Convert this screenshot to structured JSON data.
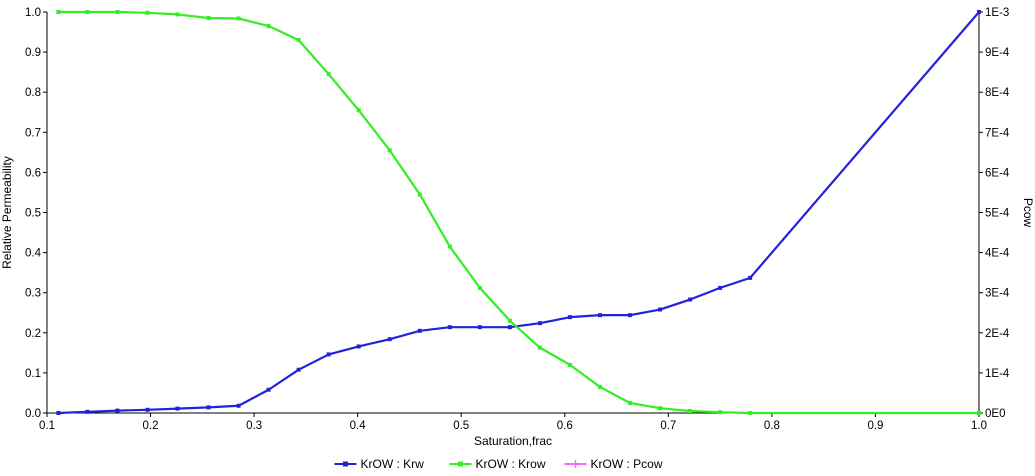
{
  "chart_data": {
    "type": "line",
    "xlabel": "Saturation,frac",
    "ylabel": "Relative Permeability",
    "y2label": "Pcow",
    "xlim": [
      0.1,
      1.0
    ],
    "ylim": [
      0.0,
      1.0
    ],
    "y2lim": [
      0.0,
      0.001
    ],
    "x_ticks": [
      "0.1",
      "0.2",
      "0.3",
      "0.4",
      "0.5",
      "0.6",
      "0.7",
      "0.8",
      "0.9",
      "1.0"
    ],
    "y_ticks": [
      "0.0",
      "0.1",
      "0.2",
      "0.3",
      "0.4",
      "0.5",
      "0.6",
      "0.7",
      "0.8",
      "0.9",
      "1.0"
    ],
    "y2_ticks": [
      "0E0",
      "1E-4",
      "2E-4",
      "3E-4",
      "4E-4",
      "5E-4",
      "6E-4",
      "7E-4",
      "8E-4",
      "9E-4",
      "1E-3"
    ],
    "grid": false,
    "legend_position": "bottom-center",
    "series": [
      {
        "name": "KrOW : Krw",
        "color": "#2222dd",
        "axis": "left",
        "x": [
          0.111,
          0.139,
          0.168,
          0.197,
          0.226,
          0.256,
          0.285,
          0.314,
          0.343,
          0.372,
          0.401,
          0.431,
          0.46,
          0.489,
          0.518,
          0.547,
          0.576,
          0.605,
          0.634,
          0.663,
          0.692,
          0.721,
          0.75,
          0.779,
          1.0
        ],
        "y": [
          0.0,
          0.003,
          0.006,
          0.008,
          0.011,
          0.014,
          0.018,
          0.058,
          0.108,
          0.146,
          0.166,
          0.184,
          0.205,
          0.214,
          0.214,
          0.214,
          0.224,
          0.239,
          0.244,
          0.244,
          0.258,
          0.283,
          0.312,
          0.337,
          1.0
        ]
      },
      {
        "name": "KrOW : Krow",
        "color": "#33ee22",
        "axis": "left",
        "x": [
          0.111,
          0.139,
          0.168,
          0.197,
          0.226,
          0.256,
          0.285,
          0.314,
          0.343,
          0.372,
          0.401,
          0.431,
          0.46,
          0.489,
          0.518,
          0.547,
          0.576,
          0.605,
          0.634,
          0.663,
          0.692,
          0.721,
          0.75,
          0.779,
          1.0
        ],
        "y": [
          1.0,
          1.0,
          1.0,
          0.998,
          0.994,
          0.985,
          0.984,
          0.965,
          0.93,
          0.845,
          0.755,
          0.655,
          0.545,
          0.415,
          0.312,
          0.23,
          0.163,
          0.12,
          0.065,
          0.025,
          0.012,
          0.005,
          0.002,
          0.0,
          0.0
        ]
      },
      {
        "name": "KrOW : Pcow",
        "color": "#ff66ff",
        "axis": "right",
        "x": [],
        "y": []
      }
    ]
  }
}
